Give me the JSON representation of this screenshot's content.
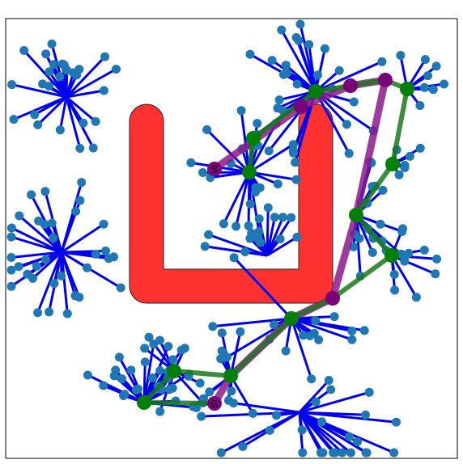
{
  "labels": {
    "start": "S",
    "goal": "G"
  },
  "colors": {
    "tree_edge": "#0000ee",
    "tree_node": "#1f77b4",
    "obstacle_fill": "#ff2020",
    "obstacle_edge": "#222222",
    "path_a": "#8b1a8b",
    "path_b": "#1a7a1a",
    "node_a": "#7a007a",
    "node_b": "#008000"
  }
}
